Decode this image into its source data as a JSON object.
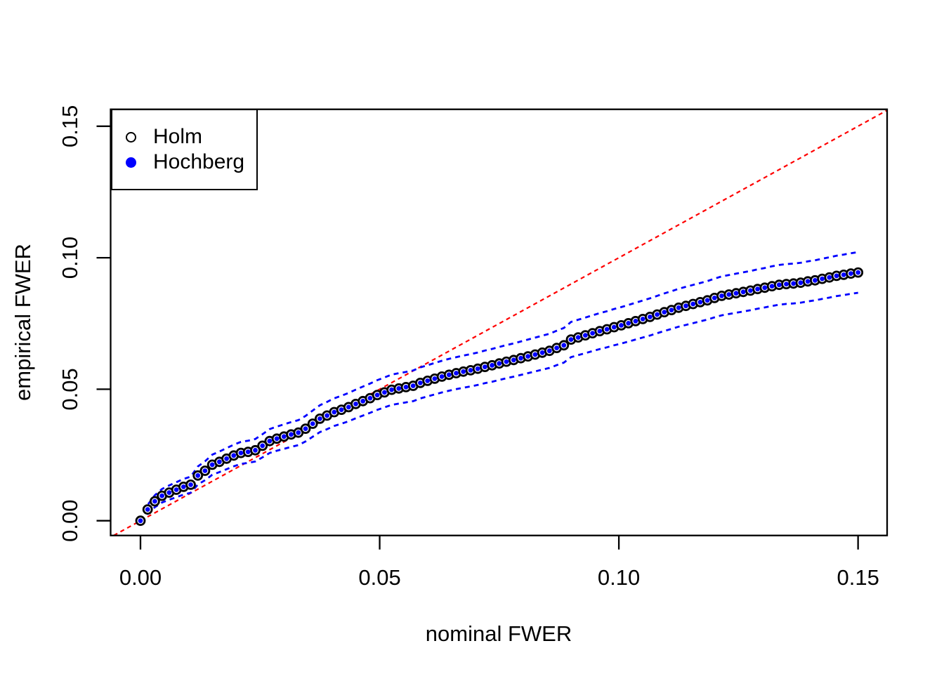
{
  "chart_data": {
    "type": "scatter",
    "title": "",
    "xlabel": "nominal FWER",
    "ylabel": "empirical FWER",
    "xlim": [
      -0.006,
      0.156
    ],
    "ylim": [
      -0.006,
      0.156
    ],
    "grid": false,
    "background": "#FFFFFF",
    "axis_color": "#000000",
    "x_tick_labels": [
      "0.00",
      "0.05",
      "0.10",
      "0.15"
    ],
    "x_tick_values": [
      0,
      0.05,
      0.1,
      0.15
    ],
    "y_tick_labels": [
      "0.00",
      "0.05",
      "0.10",
      "0.15"
    ],
    "y_tick_values": [
      0,
      0.05,
      0.1,
      0.15
    ],
    "legend_position": "top-left",
    "x": [
      0,
      0.0015,
      0.003,
      0.0045,
      0.006,
      0.0075,
      0.009,
      0.0105,
      0.012,
      0.0135,
      0.015,
      0.0165,
      0.018,
      0.0195,
      0.021,
      0.0225,
      0.024,
      0.0255,
      0.027,
      0.0285,
      0.03,
      0.0315,
      0.033,
      0.0345,
      0.036,
      0.0375,
      0.039,
      0.0405,
      0.042,
      0.0435,
      0.045,
      0.0465,
      0.048,
      0.0495,
      0.051,
      0.0525,
      0.054,
      0.0555,
      0.057,
      0.0585,
      0.06,
      0.0615,
      0.063,
      0.0645,
      0.066,
      0.0675,
      0.069,
      0.0705,
      0.072,
      0.0735,
      0.075,
      0.0765,
      0.078,
      0.0795,
      0.081,
      0.0825,
      0.084,
      0.0855,
      0.087,
      0.0885,
      0.09,
      0.0915,
      0.093,
      0.0945,
      0.096,
      0.0975,
      0.099,
      0.1005,
      0.102,
      0.1035,
      0.105,
      0.1065,
      0.108,
      0.1095,
      0.111,
      0.1125,
      0.114,
      0.1155,
      0.117,
      0.1185,
      0.12,
      0.1215,
      0.123,
      0.1245,
      0.126,
      0.1275,
      0.129,
      0.1305,
      0.132,
      0.1335,
      0.135,
      0.1365,
      0.138,
      0.1395,
      0.141,
      0.1425,
      0.144,
      0.1455,
      0.147,
      0.1485,
      0.15
    ],
    "series": [
      {
        "name": "Holm",
        "marker": "open-circle",
        "color": "#000000",
        "values": [
          0,
          0.0043,
          0.0074,
          0.0095,
          0.0107,
          0.0118,
          0.0129,
          0.0137,
          0.0172,
          0.019,
          0.0213,
          0.0224,
          0.0236,
          0.0248,
          0.0258,
          0.0262,
          0.0268,
          0.0285,
          0.0303,
          0.0312,
          0.032,
          0.0328,
          0.0335,
          0.035,
          0.0369,
          0.0388,
          0.04,
          0.0413,
          0.0422,
          0.0432,
          0.0444,
          0.0455,
          0.0466,
          0.0478,
          0.0488,
          0.0498,
          0.0503,
          0.0508,
          0.0513,
          0.0524,
          0.0532,
          0.054,
          0.0548,
          0.0555,
          0.0561,
          0.0567,
          0.0572,
          0.0578,
          0.0585,
          0.0591,
          0.0598,
          0.0605,
          0.0611,
          0.0618,
          0.0625,
          0.0632,
          0.0639,
          0.0646,
          0.0657,
          0.0667,
          0.0689,
          0.0697,
          0.0705,
          0.0713,
          0.0721,
          0.0728,
          0.0736,
          0.0743,
          0.0751,
          0.0759,
          0.0767,
          0.0775,
          0.0784,
          0.0793,
          0.0801,
          0.081,
          0.0817,
          0.0824,
          0.0831,
          0.0838,
          0.0847,
          0.0855,
          0.086,
          0.0865,
          0.087,
          0.0875,
          0.0881,
          0.0886,
          0.0892,
          0.0897,
          0.09,
          0.0902,
          0.0905,
          0.091,
          0.0914,
          0.092,
          0.0925,
          0.0931,
          0.0935,
          0.094,
          0.0944
        ]
      },
      {
        "name": "Hochberg",
        "marker": "filled-circle",
        "color": "#0000FF",
        "values": [
          0,
          0.0043,
          0.0074,
          0.0095,
          0.0107,
          0.0118,
          0.0129,
          0.0137,
          0.0172,
          0.019,
          0.0213,
          0.0224,
          0.0236,
          0.0248,
          0.0258,
          0.0262,
          0.0268,
          0.0285,
          0.0303,
          0.0312,
          0.032,
          0.0328,
          0.0335,
          0.035,
          0.0369,
          0.0388,
          0.04,
          0.0413,
          0.0422,
          0.0432,
          0.0444,
          0.0455,
          0.0466,
          0.0478,
          0.0488,
          0.0498,
          0.0503,
          0.0508,
          0.0513,
          0.0524,
          0.0532,
          0.054,
          0.0548,
          0.0555,
          0.0561,
          0.0567,
          0.0572,
          0.0578,
          0.0585,
          0.0591,
          0.0598,
          0.0605,
          0.0611,
          0.0618,
          0.0625,
          0.0632,
          0.0639,
          0.0646,
          0.0657,
          0.0667,
          0.0689,
          0.0697,
          0.0705,
          0.0713,
          0.0721,
          0.0728,
          0.0736,
          0.0743,
          0.0751,
          0.0759,
          0.0767,
          0.0775,
          0.0784,
          0.0793,
          0.0801,
          0.081,
          0.0817,
          0.0824,
          0.0831,
          0.0838,
          0.0847,
          0.0855,
          0.086,
          0.0865,
          0.087,
          0.0875,
          0.0881,
          0.0886,
          0.0892,
          0.0897,
          0.09,
          0.0902,
          0.0905,
          0.091,
          0.0914,
          0.092,
          0.0925,
          0.0931,
          0.0935,
          0.094,
          0.0944
        ]
      }
    ],
    "confidence_band": {
      "style": "dashed",
      "color": "#0000FF",
      "z": 1.96,
      "n": 5500
    },
    "reference_line": {
      "type": "identity y = x",
      "style": "dashed",
      "color": "#FF0000"
    },
    "legend": {
      "items": [
        {
          "label": "Holm",
          "marker": "open-circle",
          "color": "#000000"
        },
        {
          "label": "Hochberg",
          "marker": "filled-circle",
          "color": "#0000FF"
        }
      ]
    }
  }
}
